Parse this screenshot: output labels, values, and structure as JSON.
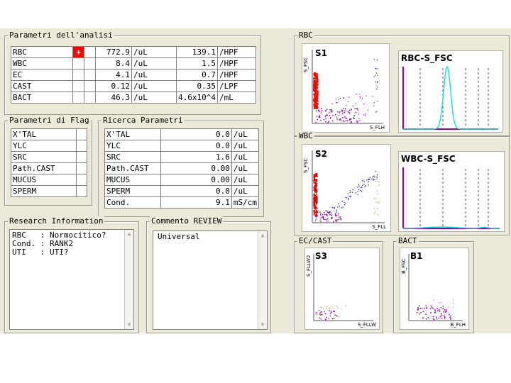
{
  "parametri": {
    "title": "Parametri dell'analisi",
    "rows": [
      {
        "name": "RBC",
        "flag": "+",
        "v1": "772.9",
        "u1": "/uL",
        "v2": "139.1",
        "u2": "/HPF"
      },
      {
        "name": "WBC",
        "flag": "",
        "v1": "8.4",
        "u1": "/uL",
        "v2": "1.5",
        "u2": "/HPF"
      },
      {
        "name": "EC",
        "flag": "",
        "v1": "4.1",
        "u1": "/uL",
        "v2": "0.7",
        "u2": "/HPF"
      },
      {
        "name": "CAST",
        "flag": "",
        "v1": "0.12",
        "u1": "/uL",
        "v2": "0.35",
        "u2": "/LPF"
      },
      {
        "name": "BACT",
        "flag": "",
        "v1": "46.3",
        "u1": "/uL",
        "v2": "4.6x10^4",
        "u2": "/mL"
      }
    ]
  },
  "flag": {
    "title": "Parametri di Flag",
    "rows": [
      "X'TAL",
      "YLC",
      "SRC",
      "Path.CAST",
      "MUCUS",
      "SPERM"
    ]
  },
  "ricerca": {
    "title": "Ricerca Parametri",
    "rows": [
      {
        "name": "X'TAL",
        "value": "0.0",
        "unit": "/uL"
      },
      {
        "name": "YLC",
        "value": "0.0",
        "unit": "/uL"
      },
      {
        "name": "SRC",
        "value": "1.6",
        "unit": "/uL"
      },
      {
        "name": "Path.CAST",
        "value": "0.00",
        "unit": "/uL"
      },
      {
        "name": "MUCUS",
        "value": "0.00",
        "unit": "/uL"
      },
      {
        "name": "SPERM",
        "value": "0.0",
        "unit": "/uL"
      },
      {
        "name": "Cond.",
        "value": "9.1",
        "unit": "mS/cm"
      }
    ]
  },
  "research": {
    "title": "Research Information",
    "lines": [
      "RBC   : Normocitico?",
      "Cond. : RANK2",
      "UTI   : UTI?"
    ]
  },
  "commento": {
    "title": "Commento REVIEW",
    "text": "Universal"
  },
  "panels": {
    "rbc": {
      "title": "RBC",
      "scatter_label": "S1",
      "x_axis": "S_FLH",
      "y_axis": "S_FSC",
      "hist_label": "RBC-S_FSC"
    },
    "wbc": {
      "title": "WBC",
      "scatter_label": "S2",
      "x_axis": "S_FLL",
      "y_axis": "S_FSC",
      "hist_label": "WBC-S_FSC"
    },
    "ec": {
      "title": "EC/CAST",
      "scatter_label": "S3",
      "x_axis": "S_FLLW",
      "y_axis": "S_FLLW2"
    },
    "bact": {
      "title": "BACT",
      "scatter_label": "B1",
      "x_axis": "B_FLH",
      "y_axis": "B_FSC"
    }
  },
  "colors": {
    "flag_red": "#ff0000",
    "rbc_dots": "#ff0000",
    "wbc_dots": "#d00000",
    "purple": "#9900aa",
    "blue": "#2020a0",
    "cyan": "#22dddd",
    "hist_axis": "#9900aa"
  }
}
